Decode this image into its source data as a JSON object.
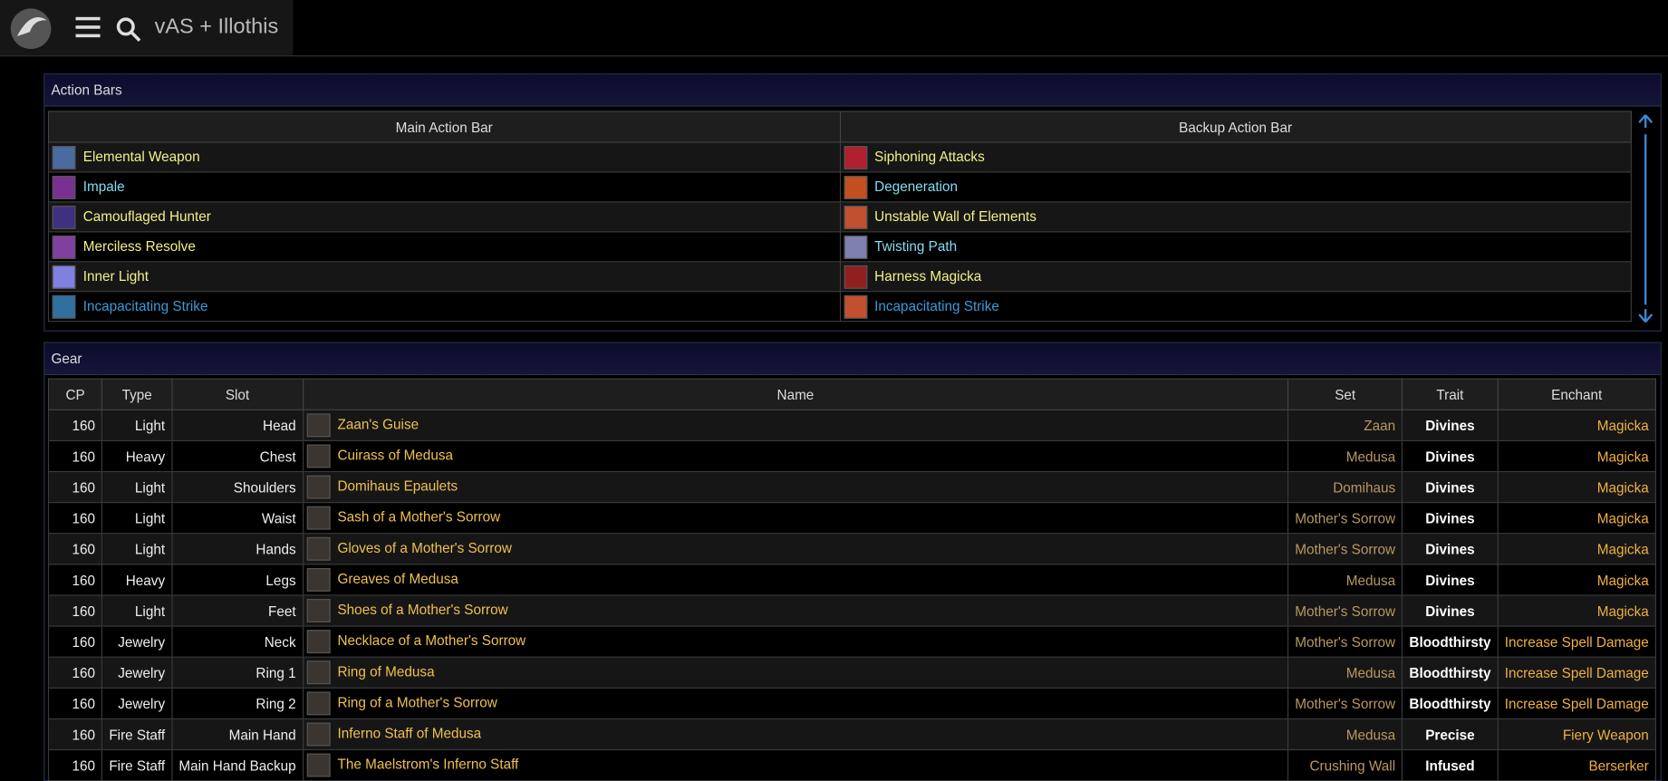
{
  "header": {
    "title": "vAS + Illothis"
  },
  "action_bars": {
    "title": "Action Bars",
    "columns": [
      "Main Action Bar",
      "Backup Action Bar"
    ],
    "rows": [
      [
        {
          "name": "Elemental Weapon",
          "color": "#f2f28a"
        },
        {
          "name": "Siphoning Attacks",
          "color": "#f2f28a"
        }
      ],
      [
        {
          "name": "Impale",
          "color": "#86dcf2"
        },
        {
          "name": "Degeneration",
          "color": "#86dcf2"
        }
      ],
      [
        {
          "name": "Camouflaged Hunter",
          "color": "#f2f28a"
        },
        {
          "name": "Unstable Wall of Elements",
          "color": "#f2f28a"
        }
      ],
      [
        {
          "name": "Merciless Resolve",
          "color": "#f2f28a"
        },
        {
          "name": "Twisting Path",
          "color": "#86dcf2"
        }
      ],
      [
        {
          "name": "Inner Light",
          "color": "#f2f28a"
        },
        {
          "name": "Harness Magicka",
          "color": "#f2f28a"
        }
      ],
      [
        {
          "name": "Incapacitating Strike",
          "color": "#3f9ad6"
        },
        {
          "name": "Incapacitating Strike",
          "color": "#3f9ad6"
        }
      ]
    ]
  },
  "gear": {
    "title": "Gear",
    "columns": [
      "CP",
      "Type",
      "Slot",
      "Name",
      "Set",
      "Trait",
      "Enchant"
    ],
    "rows": [
      [
        "160",
        "Light",
        "Head",
        "Zaan's Guise",
        "Zaan",
        "Divines",
        "Magicka"
      ],
      [
        "160",
        "Heavy",
        "Chest",
        "Cuirass of Medusa",
        "Medusa",
        "Divines",
        "Magicka"
      ],
      [
        "160",
        "Light",
        "Shoulders",
        "Domihaus Epaulets",
        "Domihaus",
        "Divines",
        "Magicka"
      ],
      [
        "160",
        "Light",
        "Waist",
        "Sash of a Mother's Sorrow",
        "Mother's Sorrow",
        "Divines",
        "Magicka"
      ],
      [
        "160",
        "Light",
        "Hands",
        "Gloves of a Mother's Sorrow",
        "Mother's Sorrow",
        "Divines",
        "Magicka"
      ],
      [
        "160",
        "Heavy",
        "Legs",
        "Greaves of Medusa",
        "Medusa",
        "Divines",
        "Magicka"
      ],
      [
        "160",
        "Light",
        "Feet",
        "Shoes of a Mother's Sorrow",
        "Mother's Sorrow",
        "Divines",
        "Magicka"
      ],
      [
        "160",
        "Jewelry",
        "Neck",
        "Necklace of a Mother's Sorrow",
        "Mother's Sorrow",
        "Bloodthirsty",
        "Increase Spell Damage"
      ],
      [
        "160",
        "Jewelry",
        "Ring 1",
        "Ring of Medusa",
        "Medusa",
        "Bloodthirsty",
        "Increase Spell Damage"
      ],
      [
        "160",
        "Jewelry",
        "Ring 2",
        "Ring of a Mother's Sorrow",
        "Mother's Sorrow",
        "Bloodthirsty",
        "Increase Spell Damage"
      ],
      [
        "160",
        "Fire Staff",
        "Main Hand",
        "Inferno Staff of Medusa",
        "Medusa",
        "Precise",
        "Fiery Weapon"
      ],
      [
        "160",
        "Fire Staff",
        "Main Hand Backup",
        "The Maelstrom's Inferno Staff",
        "Crushing Wall",
        "Infused",
        "Berserker"
      ]
    ]
  }
}
